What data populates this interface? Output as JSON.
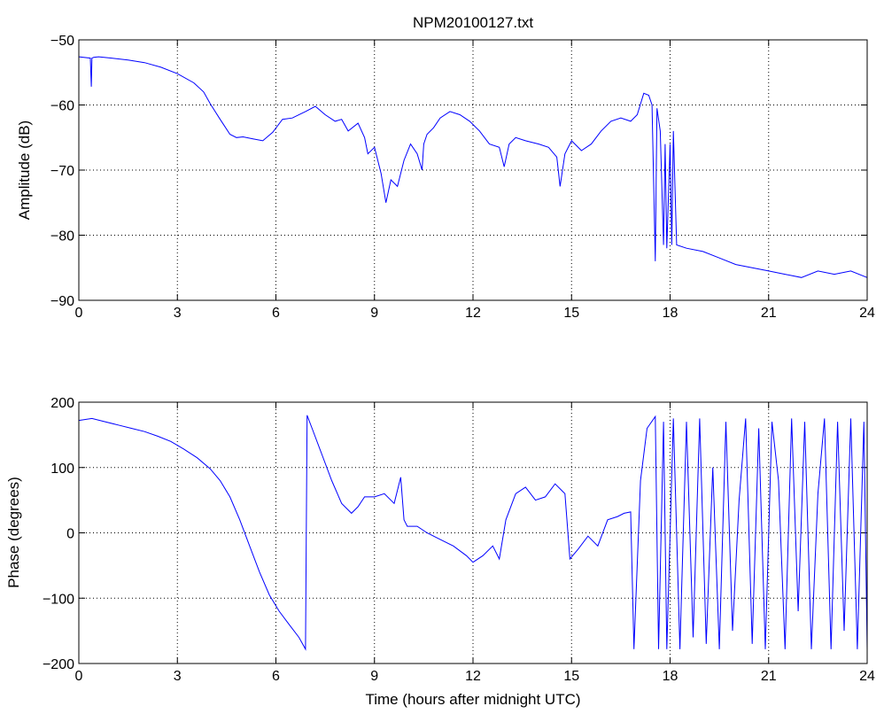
{
  "chart_data": [
    {
      "type": "line",
      "title": "NPM20100127.txt",
      "xlabel": "",
      "ylabel": "Amplitude (dB)",
      "xlim": [
        0,
        24
      ],
      "ylim": [
        -90,
        -50
      ],
      "xticks": [
        "0",
        "3",
        "6",
        "9",
        "12",
        "15",
        "18",
        "21",
        "24"
      ],
      "yticks": [
        "−90",
        "−80",
        "−70",
        "−60",
        "−50"
      ],
      "grid": true,
      "line_color": "#0000ff",
      "series": [
        {
          "x": [
            0,
            0.35,
            0.38,
            0.4,
            0.45,
            0.6,
            1,
            1.5,
            2,
            2.5,
            3,
            3.5,
            3.8,
            4,
            4.3,
            4.6,
            4.8,
            5,
            5.3,
            5.6,
            5.9,
            6.2,
            6.5,
            6.9,
            7.2,
            7.5,
            7.8,
            8.0,
            8.2,
            8.5,
            8.7,
            8.8,
            9.0,
            9.2,
            9.35,
            9.5,
            9.7,
            9.9,
            10.1,
            10.3,
            10.45,
            10.5,
            10.6,
            10.8,
            11.0,
            11.3,
            11.6,
            11.9,
            12.2,
            12.5,
            12.8,
            12.95,
            13.1,
            13.3,
            13.6,
            14.0,
            14.3,
            14.55,
            14.65,
            14.8,
            15.0,
            15.3,
            15.6,
            15.9,
            16.2,
            16.5,
            16.8,
            17.0,
            17.2,
            17.35,
            17.45,
            17.55,
            17.6,
            17.7,
            17.8,
            17.85,
            17.9,
            18.0,
            18.05,
            18.1,
            18.2,
            18.5,
            19.0,
            19.5,
            20.0,
            20.5,
            21.0,
            21.5,
            22.0,
            22.5,
            23.0,
            23.5,
            24.0
          ],
          "y": [
            -52.6,
            -52.8,
            -57.2,
            -52.8,
            -52.7,
            -52.6,
            -52.8,
            -53.1,
            -53.5,
            -54.2,
            -55.2,
            -56.6,
            -58.0,
            -59.8,
            -62.2,
            -64.5,
            -65.0,
            -64.9,
            -65.2,
            -65.5,
            -64.2,
            -62.2,
            -62.0,
            -61.0,
            -60.2,
            -61.5,
            -62.5,
            -62.2,
            -64.0,
            -62.8,
            -65.0,
            -67.5,
            -66.5,
            -70.5,
            -75.0,
            -71.5,
            -72.5,
            -68.5,
            -66.0,
            -67.5,
            -70.0,
            -66.0,
            -64.5,
            -63.5,
            -62.0,
            -61.0,
            -61.5,
            -62.5,
            -64.0,
            -66.0,
            -66.5,
            -69.5,
            -66.0,
            -65.0,
            -65.5,
            -66.0,
            -66.5,
            -68.0,
            -72.5,
            -67.5,
            -65.5,
            -67.0,
            -66.0,
            -64.0,
            -62.5,
            -62.0,
            -62.5,
            -61.5,
            -58.2,
            -58.5,
            -60.0,
            -84.0,
            -60.5,
            -64.0,
            -81.5,
            -66.0,
            -82.0,
            -66.0,
            -81.5,
            -64.0,
            -81.5,
            -82.0,
            -82.5,
            -83.5,
            -84.5,
            -85.0,
            -85.5,
            -86.0,
            -86.5,
            -85.5,
            -86.0,
            -85.5,
            -86.5
          ]
        }
      ]
    },
    {
      "type": "line",
      "title": "",
      "xlabel": "Time (hours after midnight UTC)",
      "ylabel": "Phase (degrees)",
      "xlim": [
        0,
        24
      ],
      "ylim": [
        -200,
        200
      ],
      "xticks": [
        "0",
        "3",
        "6",
        "9",
        "12",
        "15",
        "18",
        "21",
        "24"
      ],
      "yticks": [
        "−200",
        "−100",
        "0",
        "100",
        "200"
      ],
      "grid": true,
      "line_color": "#0000ff",
      "series": [
        {
          "x": [
            0,
            0.4,
            0.8,
            1.2,
            1.6,
            2.0,
            2.4,
            2.8,
            3.2,
            3.6,
            4.0,
            4.3,
            4.6,
            4.9,
            5.2,
            5.5,
            5.8,
            6.1,
            6.4,
            6.7,
            6.9,
            6.95,
            7.1,
            7.4,
            7.7,
            8.0,
            8.3,
            8.5,
            8.7,
            9.0,
            9.3,
            9.6,
            9.8,
            9.9,
            10.0,
            10.3,
            10.6,
            11.0,
            11.4,
            11.8,
            12.0,
            12.3,
            12.6,
            12.8,
            13.0,
            13.3,
            13.6,
            13.9,
            14.2,
            14.5,
            14.8,
            14.95,
            15.2,
            15.5,
            15.8,
            16.1,
            16.4,
            16.6,
            16.8,
            16.9,
            17.1,
            17.3,
            17.55,
            17.65,
            17.8,
            17.9,
            18.1,
            18.3,
            18.5,
            18.7,
            18.9,
            19.1,
            19.3,
            19.5,
            19.7,
            19.9,
            20.1,
            20.3,
            20.5,
            20.7,
            20.9,
            21.1,
            21.3,
            21.5,
            21.7,
            21.9,
            22.1,
            22.3,
            22.5,
            22.7,
            22.9,
            23.1,
            23.3,
            23.5,
            23.7,
            23.9,
            24.0
          ],
          "y": [
            172,
            175,
            170,
            165,
            160,
            155,
            148,
            140,
            128,
            115,
            98,
            80,
            55,
            20,
            -20,
            -60,
            -95,
            -120,
            -140,
            -160,
            -178,
            180,
            160,
            120,
            80,
            45,
            30,
            40,
            55,
            55,
            60,
            45,
            85,
            20,
            10,
            10,
            0,
            -10,
            -20,
            -35,
            -45,
            -35,
            -20,
            -40,
            20,
            60,
            70,
            50,
            55,
            75,
            60,
            -40,
            -25,
            -5,
            -20,
            20,
            25,
            30,
            32,
            -178,
            80,
            160,
            178,
            -178,
            170,
            -178,
            175,
            -178,
            170,
            -160,
            175,
            -170,
            100,
            -178,
            170,
            -150,
            50,
            175,
            -170,
            160,
            -178,
            170,
            80,
            -178,
            175,
            -120,
            170,
            -178,
            60,
            175,
            -178,
            170,
            -150,
            175,
            -178,
            170,
            -178
          ]
        }
      ]
    }
  ]
}
